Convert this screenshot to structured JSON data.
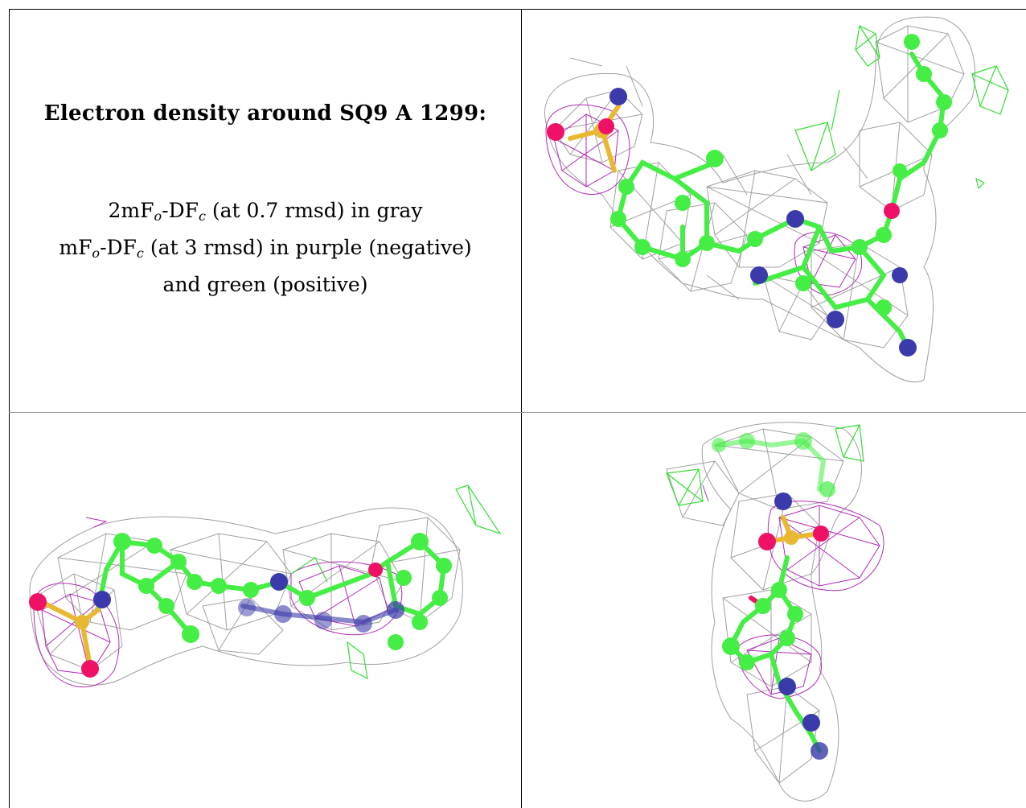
{
  "title": "Electron density around SQ9 A 1299:",
  "legend": {
    "line1": {
      "a": "2mF",
      "a_sub": "o",
      "b": "-DF",
      "b_sub": "c",
      "rest": " (at 0.7 rmsd) in gray"
    },
    "line2": {
      "a": "mF",
      "a_sub": "o",
      "b": "-DF",
      "b_sub": "c",
      "rest": " (at 3 rmsd) in purple (negative)"
    },
    "line3": "and green (positive)"
  },
  "colors": {
    "mesh_2fofc": "#9a9a9a",
    "mesh_negative": "#b22ab8",
    "mesh_positive": "#33dd33",
    "carbon": "#44ee44",
    "nitrogen": "#3a3aaa",
    "oxygen": "#ee1166",
    "sulfur": "#e8b830"
  },
  "panels": [
    {
      "view": "view-1",
      "icon": "molecule-icon"
    },
    {
      "view": "view-2",
      "icon": "molecule-icon"
    },
    {
      "view": "view-3",
      "icon": "molecule-icon"
    }
  ]
}
